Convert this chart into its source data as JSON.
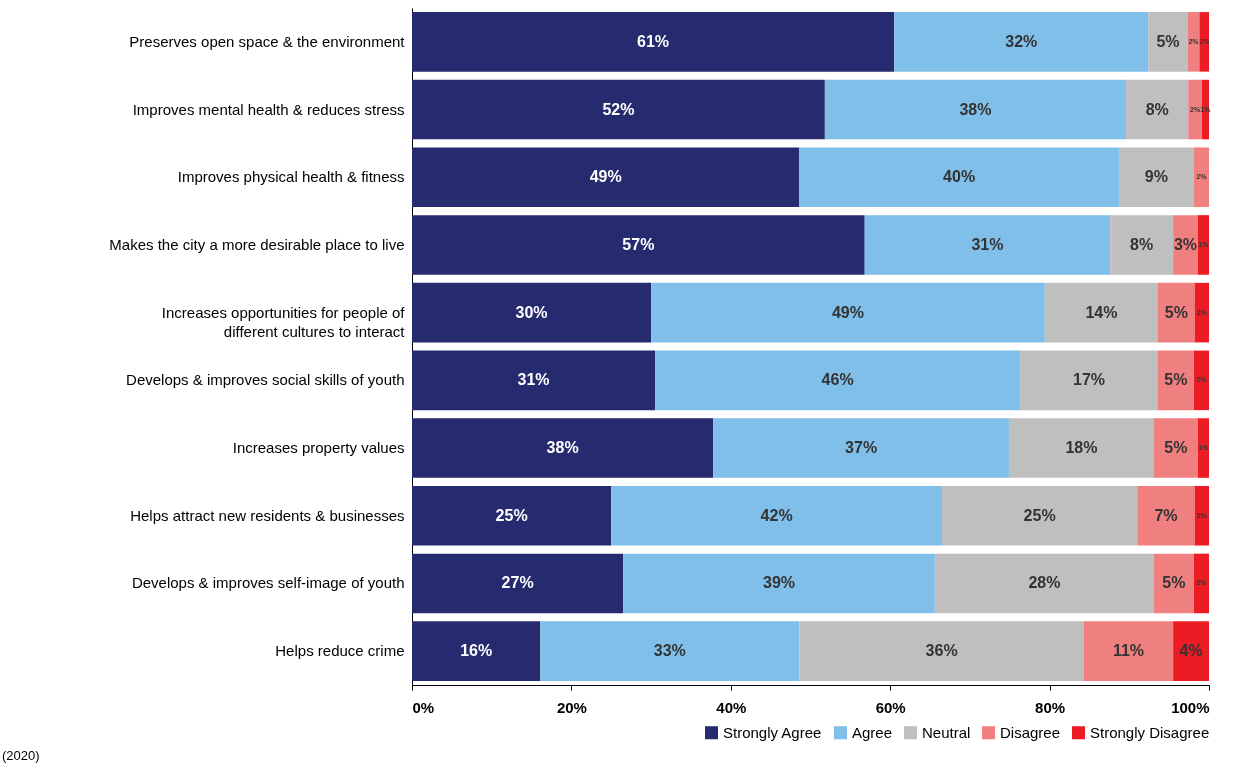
{
  "chart_data": {
    "type": "bar",
    "orientation": "horizontal",
    "stacked": true,
    "categories": [
      "Preserves open space & the environment",
      "Improves mental health & reduces stress",
      "Improves physical health & fitness",
      "Makes the city a more desirable place to live",
      "Increases opportunities for people of different cultures to interact",
      "Develops & improves social skills of youth",
      "Increases property values",
      "Helps attract new residents & businesses",
      "Develops & improves self-image of youth",
      "Helps reduce crime"
    ],
    "series": [
      {
        "name": "Strongly Agree",
        "color": "#262a6f",
        "values": [
          60.5,
          51.8,
          48.6,
          56.8,
          30.0,
          30.5,
          37.8,
          25.0,
          26.5,
          16.1
        ],
        "value_labels": [
          "61%",
          "52%",
          "49%",
          "57%",
          "30%",
          "31%",
          "38%",
          "25%",
          "27%",
          "16%"
        ]
      },
      {
        "name": "Agree",
        "color": "#80bfe9",
        "values": [
          31.9,
          37.8,
          40.1,
          30.8,
          49.4,
          45.8,
          37.1,
          41.5,
          39.1,
          32.5
        ],
        "value_labels": [
          "32%",
          "38%",
          "40%",
          "31%",
          "49%",
          "46%",
          "37%",
          "42%",
          "39%",
          "33%"
        ]
      },
      {
        "name": "Neutral",
        "color": "#bfbfbf",
        "values": [
          4.9,
          7.8,
          9.4,
          7.9,
          14.2,
          17.3,
          18.2,
          24.5,
          27.5,
          35.7
        ],
        "value_labels": [
          "5%",
          "8%",
          "9%",
          "8%",
          "14%",
          "17%",
          "18%",
          "25%",
          "28%",
          "36%"
        ]
      },
      {
        "name": "Disagree",
        "color": "#f08080",
        "values": [
          1.5,
          1.7,
          1.9,
          3.1,
          4.6,
          4.5,
          5.5,
          7.2,
          5.0,
          11.2
        ],
        "value_labels": [
          "2%",
          "2%",
          "2%",
          "3%",
          "5%",
          "5%",
          "5%",
          "7%",
          "5%",
          "11%"
        ]
      },
      {
        "name": "Strongly Disagree",
        "color": "#ec1c24",
        "values": [
          1.2,
          0.9,
          null,
          1.4,
          1.8,
          1.9,
          1.4,
          1.8,
          1.9,
          4.5
        ],
        "value_labels": [
          "1%",
          "1%",
          null,
          "1%",
          "2%",
          "2%",
          "1%",
          "2%",
          "2%",
          "4%"
        ]
      }
    ],
    "xlim": [
      0,
      100
    ],
    "xticks": [
      {
        "value": 0,
        "label": "0%"
      },
      {
        "value": 20,
        "label": "20%"
      },
      {
        "value": 40,
        "label": "40%"
      },
      {
        "value": 60,
        "label": "60%"
      },
      {
        "value": 80,
        "label": "80%"
      },
      {
        "value": 100,
        "label": "100%"
      }
    ],
    "grid": false,
    "legend": "bottom right",
    "annotations": [
      "(2020)"
    ]
  }
}
